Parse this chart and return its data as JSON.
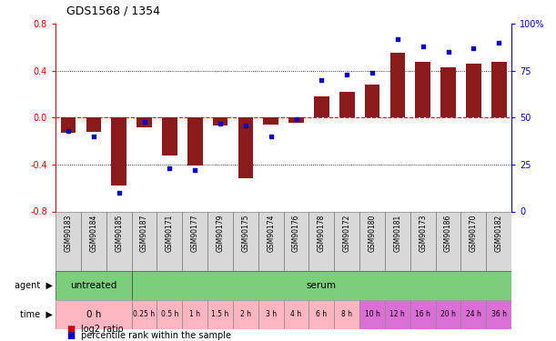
{
  "title": "GDS1568 / 1354",
  "samples": [
    "GSM90183",
    "GSM90184",
    "GSM90185",
    "GSM90187",
    "GSM90171",
    "GSM90177",
    "GSM90179",
    "GSM90175",
    "GSM90174",
    "GSM90176",
    "GSM90178",
    "GSM90172",
    "GSM90180",
    "GSM90181",
    "GSM90173",
    "GSM90186",
    "GSM90170",
    "GSM90182"
  ],
  "log2_ratio": [
    -0.13,
    -0.12,
    -0.58,
    -0.08,
    -0.32,
    -0.41,
    -0.07,
    -0.52,
    -0.06,
    -0.04,
    0.18,
    0.22,
    0.28,
    0.55,
    0.48,
    0.43,
    0.46,
    0.48
  ],
  "percentile": [
    43,
    40,
    10,
    48,
    23,
    22,
    47,
    46,
    40,
    49,
    70,
    73,
    74,
    92,
    88,
    85,
    87,
    90
  ],
  "agent_data": [
    {
      "label": "untreated",
      "start": 0,
      "end": 3,
      "color": "#7CCD7C"
    },
    {
      "label": "serum",
      "start": 3,
      "end": 18,
      "color": "#7CCD7C"
    }
  ],
  "time_data": [
    {
      "label": "0 h",
      "start": 0,
      "end": 3,
      "color": "#FFB6C1"
    },
    {
      "label": "0.25 h",
      "start": 3,
      "end": 4,
      "color": "#FFB6C1"
    },
    {
      "label": "0.5 h",
      "start": 4,
      "end": 5,
      "color": "#FFB6C1"
    },
    {
      "label": "1 h",
      "start": 5,
      "end": 6,
      "color": "#FFB6C1"
    },
    {
      "label": "1.5 h",
      "start": 6,
      "end": 7,
      "color": "#FFB6C1"
    },
    {
      "label": "2 h",
      "start": 7,
      "end": 8,
      "color": "#FFB6C1"
    },
    {
      "label": "3 h",
      "start": 8,
      "end": 9,
      "color": "#FFB6C1"
    },
    {
      "label": "4 h",
      "start": 9,
      "end": 10,
      "color": "#FFB6C1"
    },
    {
      "label": "6 h",
      "start": 10,
      "end": 11,
      "color": "#FFB6C1"
    },
    {
      "label": "8 h",
      "start": 11,
      "end": 12,
      "color": "#FFB6C1"
    },
    {
      "label": "10 h",
      "start": 12,
      "end": 13,
      "color": "#DA70D6"
    },
    {
      "label": "12 h",
      "start": 13,
      "end": 14,
      "color": "#DA70D6"
    },
    {
      "label": "16 h",
      "start": 14,
      "end": 15,
      "color": "#DA70D6"
    },
    {
      "label": "20 h",
      "start": 15,
      "end": 16,
      "color": "#DA70D6"
    },
    {
      "label": "24 h",
      "start": 16,
      "end": 17,
      "color": "#DA70D6"
    },
    {
      "label": "36 h",
      "start": 17,
      "end": 18,
      "color": "#DA70D6"
    }
  ],
  "bar_color": "#8B1A1A",
  "dot_color": "#0000CD",
  "ylim_left": [
    -0.8,
    0.8
  ],
  "ylim_right": [
    0,
    100
  ],
  "yticks_left": [
    -0.8,
    -0.4,
    0.0,
    0.4,
    0.8
  ],
  "yticks_right": [
    0,
    25,
    50,
    75,
    100
  ],
  "ylabel_right_labels": [
    "0",
    "25",
    "50",
    "75",
    "100%"
  ],
  "hlines": [
    -0.4,
    0.0,
    0.4
  ],
  "legend_items": [
    "log2 ratio",
    "percentile rank within the sample"
  ],
  "legend_colors": [
    "#CC0000",
    "#0000CD"
  ]
}
